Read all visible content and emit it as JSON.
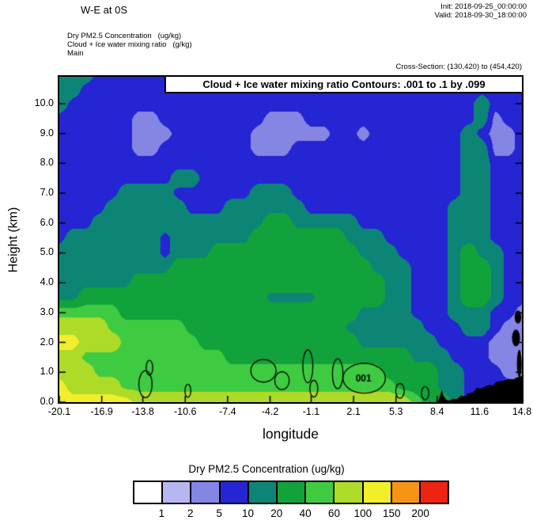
{
  "header": {
    "title": "W-E at 0S",
    "init_label": "Init: 2018-09-25_00:00:00",
    "valid_label": "Valid: 2018-09-30_18:00:00",
    "field_line": "Dry PM2.5 Concentration   (ug/kg)",
    "contour_line": "Cloud + Ice water mixing ratio   (g/kg)",
    "model_line": "Main",
    "cross_section_label": "Cross-Section: (130,420) to (454,420)"
  },
  "chart_data": {
    "type": "heatmap",
    "title": "W-E at 0S",
    "contour_banner": "Cloud + Ice water mixing ratio Contours: .001 to .1 by .099",
    "fill_field": "Dry PM2.5 Concentration (ug/kg)",
    "xlabel": "longitude",
    "ylabel": "Height (km)",
    "xlim": [
      -20.1,
      14.8
    ],
    "ylim": [
      0,
      10.9
    ],
    "xticks": [
      -20.1,
      -16.9,
      -13.8,
      -10.6,
      -7.4,
      -4.2,
      -1.1,
      2.1,
      5.3,
      8.4,
      11.6,
      14.8
    ],
    "xtick_labels": [
      "-20.1",
      "-16.9",
      "-13.8",
      "-10.6",
      "-7.4",
      "-4.2",
      "-1.1",
      "2.1",
      "5.3",
      "8.4",
      "11.6",
      "14.8"
    ],
    "yticks": [
      0,
      1,
      2,
      3,
      4,
      5,
      6,
      7,
      8,
      9,
      10
    ],
    "ytick_labels": [
      "0.0",
      "1.0",
      "2.0",
      "3.0",
      "4.0",
      "5.0",
      "6.0",
      "7.0",
      "8.0",
      "9.0",
      "10.0"
    ],
    "levels": [
      1,
      2,
      5,
      10,
      20,
      40,
      60,
      100,
      150,
      200
    ],
    "colors": [
      "#ffffff",
      "#b6b6f2",
      "#8585e3",
      "#2525d3",
      "#0c8577",
      "#12a23c",
      "#3fcb41",
      "#aeda28",
      "#f2ee2b",
      "#f59513",
      "#ee2312"
    ],
    "grid": {
      "x_start": -20.1,
      "x_end": 14.8,
      "y_start": 0,
      "y_end": 11,
      "values": [
        [
          120,
          120,
          120,
          120,
          120,
          120,
          80,
          80,
          80,
          80,
          80,
          80,
          80,
          80,
          80,
          80,
          80,
          80,
          80,
          80,
          80,
          80,
          80,
          80,
          80,
          80,
          80,
          50,
          30,
          30,
          15,
          7,
          7,
          7,
          7,
          7
        ],
        [
          120,
          80,
          80,
          80,
          80,
          50,
          50,
          50,
          50,
          50,
          50,
          50,
          50,
          50,
          50,
          50,
          50,
          50,
          50,
          50,
          50,
          50,
          50,
          50,
          50,
          50,
          30,
          30,
          30,
          15,
          15,
          7,
          7,
          7,
          7,
          7
        ],
        [
          80,
          80,
          80,
          50,
          50,
          50,
          50,
          50,
          50,
          50,
          50,
          50,
          50,
          50,
          50,
          50,
          50,
          50,
          50,
          50,
          50,
          50,
          50,
          50,
          50,
          30,
          30,
          30,
          30,
          15,
          15,
          7,
          7,
          7,
          3,
          3
        ],
        [
          80,
          80,
          50,
          50,
          50,
          50,
          50,
          50,
          50,
          50,
          50,
          50,
          50,
          30,
          30,
          30,
          30,
          30,
          30,
          30,
          30,
          30,
          30,
          30,
          30,
          30,
          30,
          15,
          15,
          15,
          7,
          7,
          7,
          3,
          3,
          1.5
        ],
        [
          120,
          120,
          80,
          80,
          80,
          50,
          50,
          50,
          50,
          50,
          50,
          30,
          30,
          30,
          30,
          30,
          30,
          30,
          30,
          30,
          30,
          30,
          30,
          15,
          15,
          15,
          15,
          15,
          15,
          7,
          7,
          7,
          7,
          3,
          3,
          3
        ],
        [
          80,
          80,
          80,
          80,
          50,
          50,
          50,
          50,
          50,
          50,
          30,
          30,
          30,
          30,
          30,
          30,
          30,
          30,
          30,
          30,
          30,
          30,
          15,
          15,
          15,
          15,
          15,
          15,
          7,
          7,
          7,
          15,
          15,
          7,
          3,
          3
        ],
        [
          50,
          50,
          50,
          50,
          50,
          30,
          30,
          30,
          30,
          30,
          30,
          30,
          30,
          30,
          30,
          30,
          30,
          30,
          30,
          30,
          30,
          30,
          30,
          15,
          15,
          15,
          15,
          7,
          7,
          7,
          15,
          15,
          15,
          7,
          7,
          3
        ],
        [
          15,
          15,
          30,
          30,
          30,
          30,
          30,
          30,
          30,
          30,
          30,
          30,
          30,
          30,
          30,
          30,
          15,
          15,
          15,
          15,
          30,
          30,
          30,
          30,
          30,
          15,
          15,
          7,
          7,
          7,
          15,
          30,
          30,
          15,
          7,
          7
        ],
        [
          15,
          15,
          15,
          15,
          15,
          15,
          30,
          30,
          30,
          30,
          30,
          30,
          30,
          30,
          30,
          30,
          30,
          30,
          30,
          30,
          30,
          30,
          30,
          30,
          30,
          15,
          15,
          7,
          7,
          7,
          15,
          30,
          30,
          15,
          7,
          7
        ],
        [
          15,
          15,
          15,
          15,
          15,
          15,
          15,
          15,
          15,
          30,
          30,
          30,
          30,
          30,
          30,
          30,
          30,
          30,
          30,
          30,
          30,
          30,
          30,
          30,
          15,
          15,
          15,
          7,
          7,
          7,
          15,
          30,
          30,
          15,
          7,
          7
        ],
        [
          15,
          15,
          15,
          15,
          15,
          15,
          15,
          15,
          7,
          15,
          15,
          15,
          30,
          30,
          30,
          30,
          30,
          30,
          30,
          30,
          30,
          30,
          30,
          15,
          15,
          15,
          7,
          7,
          7,
          7,
          15,
          30,
          15,
          15,
          7,
          7
        ],
        [
          7,
          15,
          15,
          15,
          15,
          15,
          15,
          15,
          7,
          15,
          15,
          15,
          15,
          15,
          15,
          30,
          30,
          30,
          30,
          30,
          30,
          30,
          15,
          15,
          15,
          7,
          7,
          7,
          7,
          7,
          15,
          15,
          15,
          7,
          7,
          7
        ],
        [
          7,
          7,
          7,
          15,
          15,
          15,
          15,
          15,
          15,
          15,
          15,
          15,
          15,
          15,
          15,
          15,
          30,
          30,
          15,
          15,
          15,
          15,
          15,
          7,
          7,
          7,
          7,
          7,
          7,
          7,
          15,
          15,
          15,
          7,
          7,
          7
        ],
        [
          7,
          7,
          7,
          7,
          15,
          15,
          15,
          15,
          15,
          15,
          7,
          7,
          7,
          15,
          15,
          15,
          15,
          15,
          15,
          7,
          7,
          7,
          7,
          7,
          7,
          7,
          7,
          7,
          7,
          7,
          15,
          15,
          15,
          7,
          7,
          7
        ],
        [
          7,
          7,
          7,
          7,
          7,
          15,
          15,
          15,
          15,
          7,
          7,
          7,
          7,
          7,
          7,
          15,
          15,
          15,
          7,
          7,
          7,
          7,
          7,
          7,
          7,
          7,
          7,
          7,
          7,
          7,
          7,
          15,
          15,
          7,
          7,
          7
        ],
        [
          7,
          7,
          7,
          7,
          7,
          7,
          7,
          7,
          7,
          15,
          15,
          7,
          7,
          7,
          7,
          7,
          7,
          7,
          7,
          7,
          7,
          7,
          7,
          7,
          7,
          7,
          7,
          7,
          7,
          7,
          7,
          15,
          15,
          7,
          7,
          7
        ],
        [
          7,
          7,
          7,
          7,
          7,
          7,
          7,
          7,
          7,
          7,
          7,
          7,
          7,
          7,
          7,
          7,
          7,
          7,
          7,
          7,
          7,
          7,
          7,
          7,
          7,
          7,
          7,
          7,
          7,
          7,
          7,
          15,
          15,
          7,
          7,
          7
        ],
        [
          7,
          7,
          7,
          7,
          7,
          7,
          3,
          3,
          7,
          7,
          7,
          7,
          7,
          7,
          7,
          3,
          3,
          3,
          7,
          7,
          7,
          7,
          7,
          7,
          7,
          7,
          7,
          7,
          7,
          7,
          7,
          15,
          15,
          3,
          3,
          7
        ],
        [
          7,
          7,
          7,
          7,
          7,
          7,
          3,
          3,
          3,
          7,
          7,
          7,
          7,
          7,
          7,
          3,
          3,
          3,
          3,
          3,
          3,
          7,
          7,
          3,
          7,
          7,
          7,
          7,
          7,
          7,
          7,
          15,
          7,
          3,
          3,
          7
        ],
        [
          7,
          7,
          7,
          7,
          7,
          7,
          3,
          3,
          7,
          7,
          7,
          7,
          7,
          7,
          7,
          7,
          3,
          3,
          3,
          7,
          7,
          7,
          7,
          7,
          7,
          7,
          7,
          7,
          7,
          7,
          7,
          7,
          15,
          3,
          7,
          7
        ],
        [
          15,
          7,
          7,
          7,
          7,
          7,
          7,
          7,
          7,
          7,
          7,
          7,
          7,
          7,
          7,
          7,
          7,
          7,
          7,
          7,
          7,
          7,
          7,
          7,
          7,
          7,
          7,
          7,
          7,
          7,
          7,
          7,
          15,
          7,
          7,
          7
        ],
        [
          15,
          15,
          7,
          7,
          7,
          7,
          7,
          7,
          7,
          7,
          7,
          7,
          7,
          7,
          7,
          7,
          7,
          7,
          7,
          7,
          7,
          7,
          7,
          7,
          7,
          7,
          7,
          7,
          7,
          7,
          7,
          7,
          7,
          7,
          7,
          7
        ],
        [
          15,
          15,
          15,
          7,
          7,
          7,
          7,
          7,
          7,
          7,
          7,
          7,
          7,
          7,
          7,
          7,
          7,
          7,
          7,
          7,
          7,
          7,
          7,
          7,
          7,
          7,
          7,
          7,
          7,
          7,
          7,
          7,
          7,
          7,
          7,
          7
        ]
      ]
    },
    "cloud_contours": {
      "label": {
        "text": "001",
        "x": 2.85,
        "y": 0.78
      },
      "ellipses": [
        {
          "x": -13.6,
          "y": 0.6,
          "rx": 0.5,
          "ry": 0.45
        },
        {
          "x": -13.3,
          "y": 1.15,
          "rx": 0.25,
          "ry": 0.25
        },
        {
          "x": -10.4,
          "y": 0.38,
          "rx": 0.22,
          "ry": 0.22
        },
        {
          "x": -4.7,
          "y": 1.05,
          "rx": 0.95,
          "ry": 0.38
        },
        {
          "x": -3.3,
          "y": 0.72,
          "rx": 0.55,
          "ry": 0.3
        },
        {
          "x": -1.35,
          "y": 1.2,
          "rx": 0.38,
          "ry": 0.55
        },
        {
          "x": -0.9,
          "y": 0.45,
          "rx": 0.3,
          "ry": 0.28
        },
        {
          "x": 0.9,
          "y": 0.95,
          "rx": 0.4,
          "ry": 0.5
        },
        {
          "x": 2.9,
          "y": 0.8,
          "rx": 1.6,
          "ry": 0.5
        },
        {
          "x": 5.6,
          "y": 0.38,
          "rx": 0.32,
          "ry": 0.25
        },
        {
          "x": 7.5,
          "y": 0.3,
          "rx": 0.28,
          "ry": 0.22
        }
      ],
      "filled": [
        {
          "x": 14.35,
          "y": 2.15,
          "rx": 0.3,
          "ry": 0.28
        },
        {
          "x": 14.5,
          "y": 2.85,
          "rx": 0.25,
          "ry": 0.22
        },
        {
          "x": 14.6,
          "y": 1.3,
          "rx": 0.18,
          "ry": 0.45
        }
      ]
    },
    "terrain": [
      [
        8.45,
        0
      ],
      [
        8.6,
        0.18
      ],
      [
        8.75,
        0.42
      ],
      [
        8.9,
        0.2
      ],
      [
        9.1,
        0.07
      ],
      [
        9.35,
        0.05
      ],
      [
        9.6,
        0.12
      ],
      [
        9.9,
        0.1
      ],
      [
        10.2,
        0.22
      ],
      [
        10.5,
        0.2
      ],
      [
        10.8,
        0.3
      ],
      [
        11.1,
        0.32
      ],
      [
        11.4,
        0.48
      ],
      [
        11.7,
        0.45
      ],
      [
        12.0,
        0.52
      ],
      [
        12.3,
        0.58
      ],
      [
        12.6,
        0.55
      ],
      [
        12.9,
        0.68
      ],
      [
        13.2,
        0.7
      ],
      [
        13.5,
        0.72
      ],
      [
        13.8,
        0.78
      ],
      [
        14.1,
        0.75
      ],
      [
        14.4,
        0.82
      ],
      [
        14.8,
        0.88
      ],
      [
        14.8,
        0
      ]
    ],
    "colorbar": {
      "title": "Dry PM2.5 Concentration  (ug/kg)",
      "tick_labels": [
        "1",
        "2",
        "5",
        "10",
        "20",
        "40",
        "60",
        "100",
        "150",
        "200"
      ]
    }
  }
}
